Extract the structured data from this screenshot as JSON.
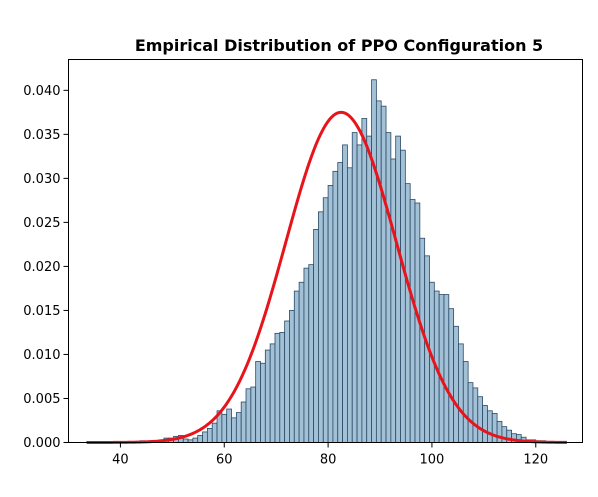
{
  "chart_data": {
    "type": "bar",
    "title": "Empirical Distribution of PPO Configuration 5",
    "xlabel": "",
    "ylabel": "",
    "xlim": [
      30,
      129
    ],
    "ylim": [
      0,
      0.0435
    ],
    "x_ticks": [
      40,
      60,
      80,
      100,
      120
    ],
    "y_ticks": [
      0.0,
      0.005,
      0.01,
      0.015,
      0.02,
      0.025,
      0.03,
      0.035,
      0.04
    ],
    "y_tick_labels": [
      "0.000",
      "0.005",
      "0.010",
      "0.015",
      "0.020",
      "0.025",
      "0.030",
      "0.035",
      "0.040"
    ],
    "grid": false,
    "bin_start": 33.5,
    "bin_width": 0.93,
    "values": [
      0.0001,
      0,
      0,
      0,
      0,
      0,
      0,
      0,
      0,
      0,
      0.0001,
      0.0002,
      0,
      0.0002,
      0.0002,
      0.0003,
      0.0005,
      0.0005,
      0.0007,
      0.0008,
      0.0004,
      0.0003,
      0.0005,
      0.0008,
      0.0012,
      0.0016,
      0.0022,
      0.0036,
      0.0032,
      0.0038,
      0.0028,
      0.0034,
      0.0046,
      0.0061,
      0.0063,
      0.0092,
      0.009,
      0.0105,
      0.0112,
      0.0124,
      0.0125,
      0.0138,
      0.015,
      0.0172,
      0.0182,
      0.0198,
      0.0202,
      0.0242,
      0.0262,
      0.0278,
      0.0292,
      0.0308,
      0.0318,
      0.0338,
      0.0312,
      0.0352,
      0.0338,
      0.0368,
      0.0348,
      0.0412,
      0.0388,
      0.0382,
      0.0352,
      0.0322,
      0.0348,
      0.0332,
      0.0294,
      0.0276,
      0.0272,
      0.0232,
      0.0212,
      0.0182,
      0.0172,
      0.0168,
      0.0168,
      0.0152,
      0.0132,
      0.0112,
      0.0092,
      0.0068,
      0.0062,
      0.0052,
      0.0042,
      0.0036,
      0.0033,
      0.0024,
      0.0018,
      0.0014,
      0.001,
      0.0009,
      0.0006,
      0.0003,
      0.0003,
      0.0002,
      0.0002,
      0.0001,
      0.0001
    ],
    "fit_curve": {
      "type": "normal",
      "mean": 82.5,
      "std": 10.65,
      "peak_density": 0.0375,
      "x_range": [
        33.5,
        126
      ],
      "color": "#e8141b"
    },
    "bar_color": "#a3c1d6",
    "bar_edge_color": "#2b4a66"
  }
}
